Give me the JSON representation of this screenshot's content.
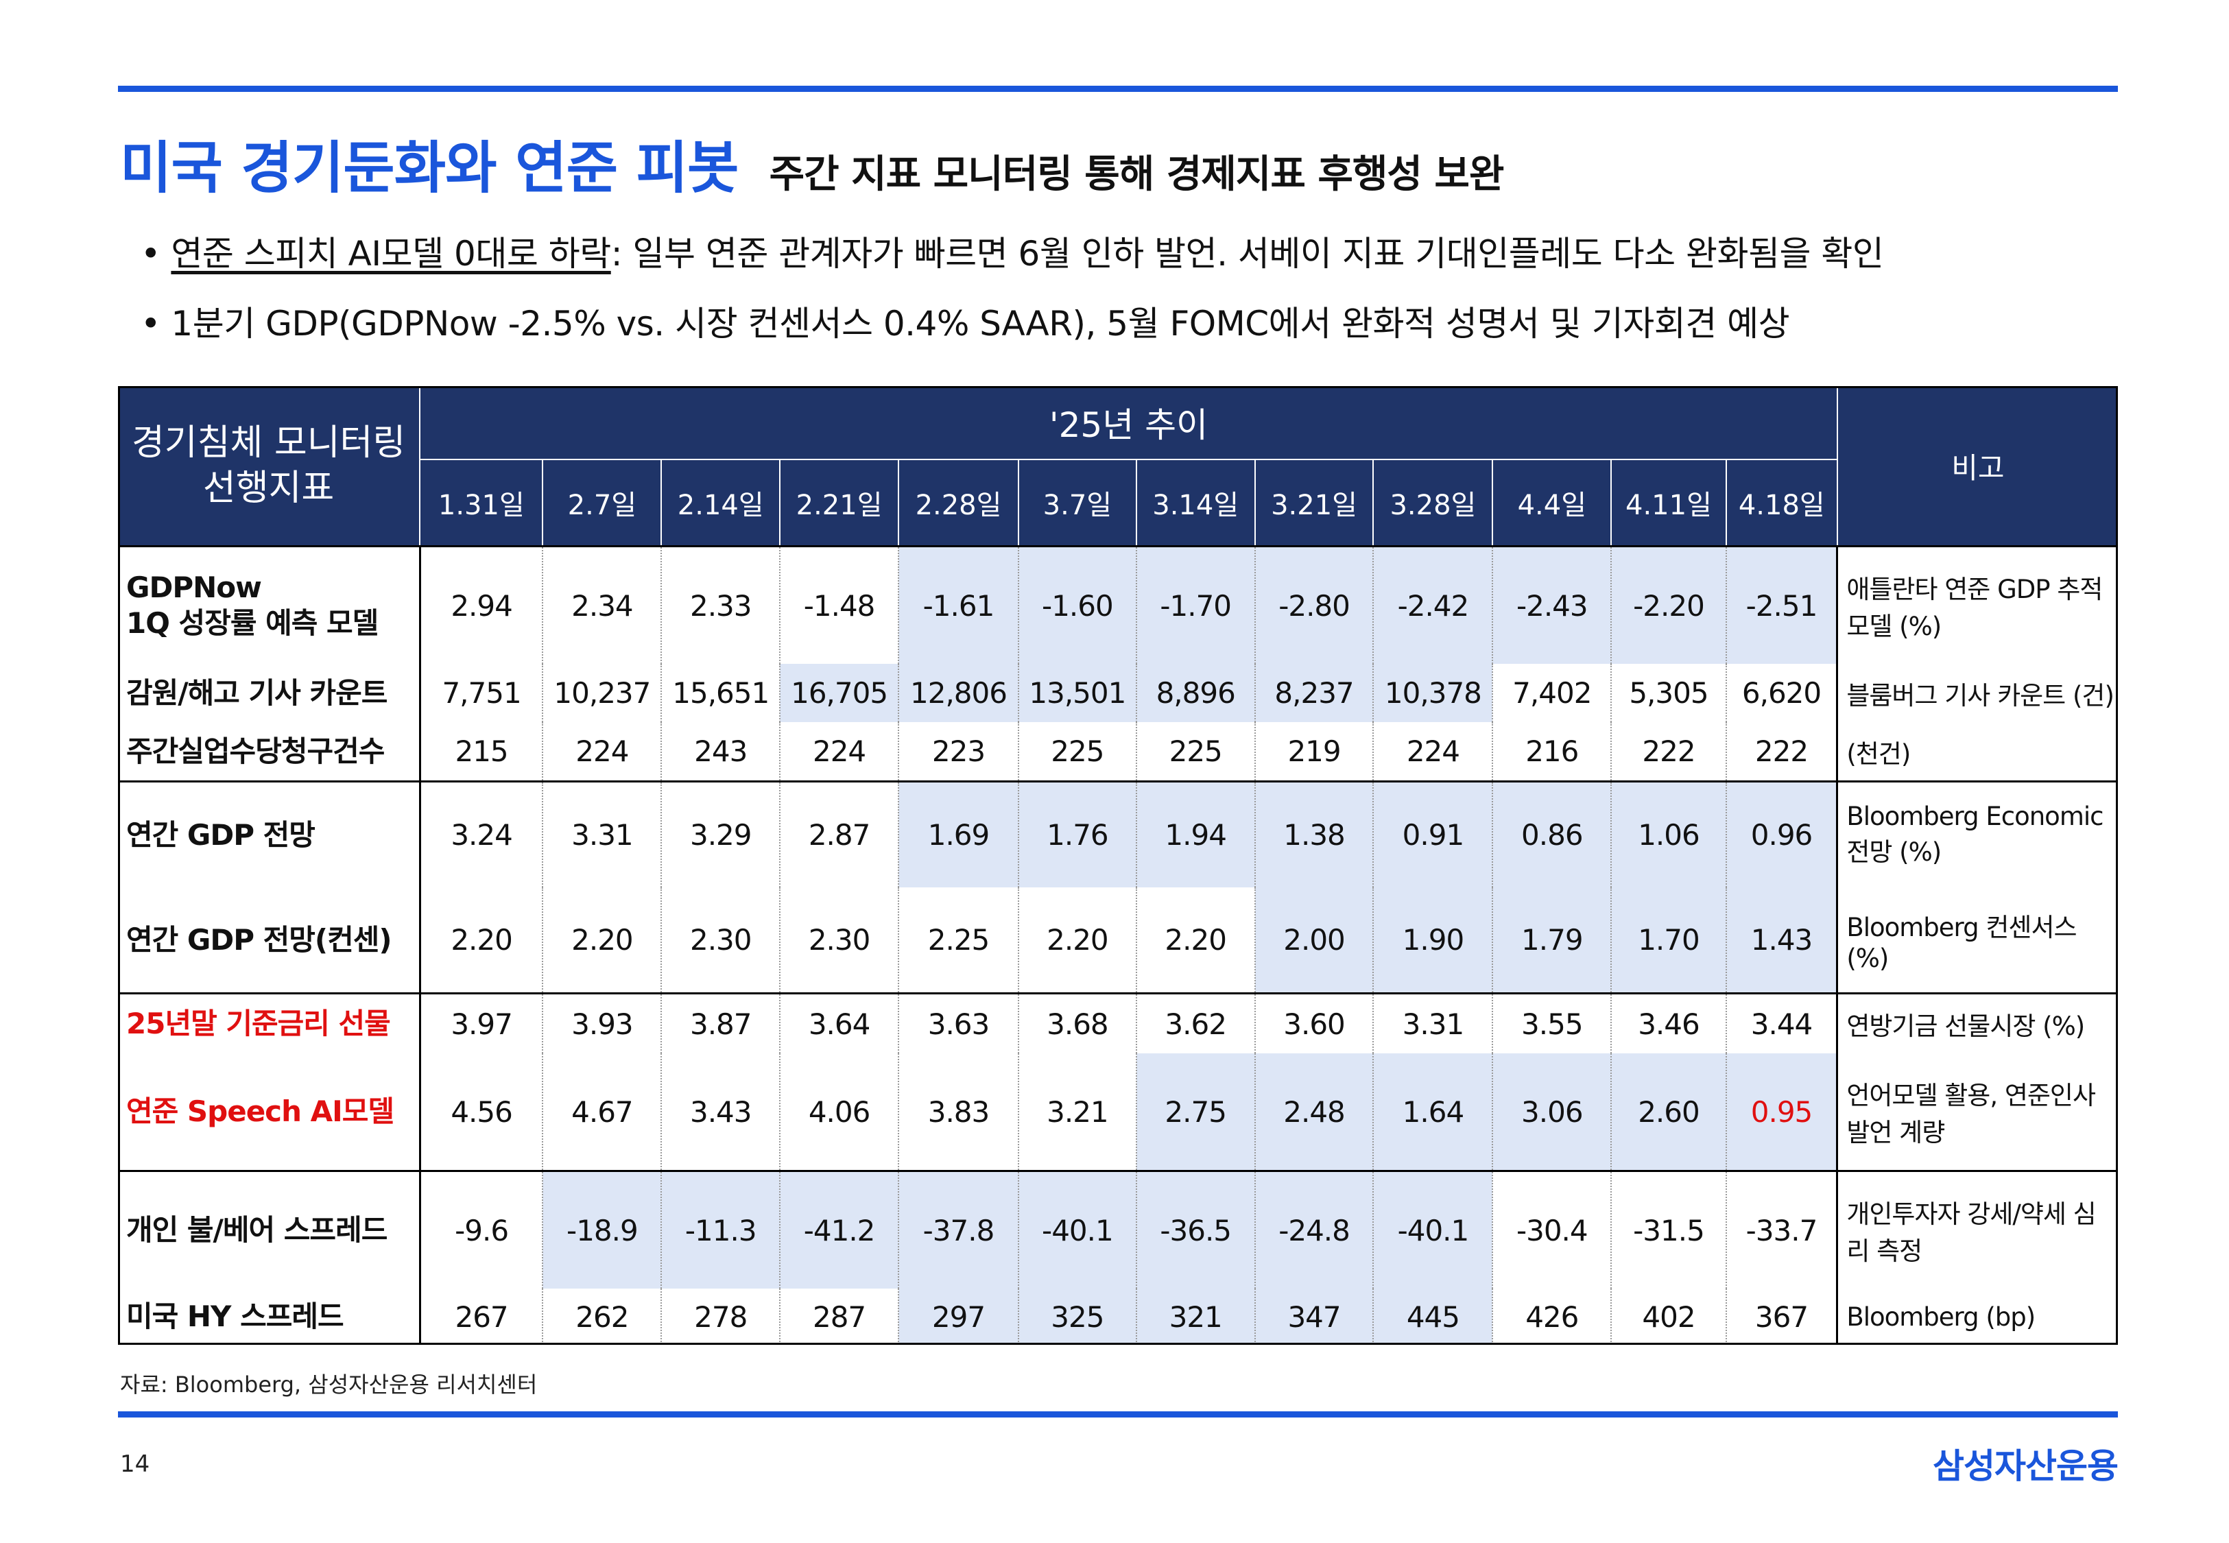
{
  "title": "미국 경기둔화와 연준 피봇",
  "subtitle": "주간 지표 모니터링 통해 경제지표 후행성 보완",
  "bullets": [
    {
      "underlined": "연준 스피치 AI모델 0대로 하락",
      "rest": ": 일부 연준 관계자가 빠르면 6월 인하 발언. 서베이 지표 기대인플레도 다소 완화됨을 확인"
    },
    {
      "underlined": "",
      "rest": "1분기 GDP(GDPNow -2.5% vs. 시장 컨센서스 0.4% SAAR), 5월 FOMC에서 완화적 성명서 및 기자회견 예상"
    }
  ],
  "table": {
    "indicator_header": "경기침체 모니터링 선행지표",
    "trend_header": "'25년 추이",
    "note_header": "비고",
    "dates": [
      "1.31일",
      "2.7일",
      "2.14일",
      "2.21일",
      "2.28일",
      "3.7일",
      "3.14일",
      "3.21일",
      "3.28일",
      "4.4일",
      "4.11일",
      "4.18일"
    ],
    "rows": [
      {
        "label": "GDPNow 1Q 성장률 예측 모델",
        "label_lines": [
          "GDPNow",
          "1Q 성장률 예측 모델"
        ],
        "values": [
          "2.94",
          "2.34",
          "2.33",
          "-1.48",
          "-1.61",
          "-1.60",
          "-1.70",
          "-2.80",
          "-2.42",
          "-2.43",
          "-2.20",
          "-2.51"
        ],
        "highlight": [
          4,
          5,
          6,
          7,
          8,
          9,
          10,
          11
        ],
        "note": "애틀란타 연준 GDP 추적 모델 (%)",
        "group_start": true,
        "red": false
      },
      {
        "label": "감원/해고 기사 카운트",
        "values": [
          "7,751",
          "10,237",
          "15,651",
          "16,705",
          "12,806",
          "13,501",
          "8,896",
          "8,237",
          "10,378",
          "7,402",
          "5,305",
          "6,620"
        ],
        "highlight": [
          3,
          4,
          5,
          6,
          7,
          8
        ],
        "note": "블룸버그 기사 카운트 (건)",
        "group_start": false,
        "red": false
      },
      {
        "label": "주간실업수당청구건수",
        "values": [
          "215",
          "224",
          "243",
          "224",
          "223",
          "225",
          "225",
          "219",
          "224",
          "216",
          "222",
          "222"
        ],
        "highlight": [],
        "note": "(천건)",
        "group_start": false,
        "red": false
      },
      {
        "label": "연간 GDP 전망",
        "values": [
          "3.24",
          "3.31",
          "3.29",
          "2.87",
          "1.69",
          "1.76",
          "1.94",
          "1.38",
          "0.91",
          "0.86",
          "1.06",
          "0.96"
        ],
        "highlight": [
          4,
          5,
          6,
          7,
          8,
          9,
          10,
          11
        ],
        "note": "Bloomberg Economic 전망 (%)",
        "group_start": true,
        "red": false
      },
      {
        "label": "연간 GDP 전망(컨센)",
        "values": [
          "2.20",
          "2.20",
          "2.30",
          "2.30",
          "2.25",
          "2.20",
          "2.20",
          "2.00",
          "1.90",
          "1.79",
          "1.70",
          "1.43"
        ],
        "highlight": [
          7,
          8,
          9,
          10,
          11
        ],
        "note": "Bloomberg 컨센서스 (%)",
        "group_start": false,
        "red": false
      },
      {
        "label": "25년말 기준금리 선물",
        "values": [
          "3.97",
          "3.93",
          "3.87",
          "3.64",
          "3.63",
          "3.68",
          "3.62",
          "3.60",
          "3.31",
          "3.55",
          "3.46",
          "3.44"
        ],
        "highlight": [],
        "note": "연방기금 선물시장 (%)",
        "group_start": true,
        "red": true
      },
      {
        "label": "연준 Speech AI모델",
        "values": [
          "4.56",
          "4.67",
          "3.43",
          "4.06",
          "3.83",
          "3.21",
          "2.75",
          "2.48",
          "1.64",
          "3.06",
          "2.60",
          "0.95"
        ],
        "highlight": [
          6,
          7,
          8,
          9,
          10,
          11
        ],
        "red_values": [
          11
        ],
        "note": "언어모델 활용, 연준인사 발언 계량",
        "group_start": false,
        "red": true
      },
      {
        "label": "개인 불/베어 스프레드",
        "values": [
          "-9.6",
          "-18.9",
          "-11.3",
          "-41.2",
          "-37.8",
          "-40.1",
          "-36.5",
          "-24.8",
          "-40.1",
          "-30.4",
          "-31.5",
          "-33.7"
        ],
        "highlight": [
          1,
          2,
          3,
          4,
          5,
          6,
          7,
          8
        ],
        "note": "개인투자자 강세/약세 심리 측정",
        "group_start": true,
        "red": false
      },
      {
        "label": "미국 HY 스프레드",
        "values": [
          "267",
          "262",
          "278",
          "287",
          "297",
          "325",
          "321",
          "347",
          "445",
          "426",
          "402",
          "367"
        ],
        "highlight": [
          4,
          5,
          6,
          7,
          8
        ],
        "note": "Bloomberg (bp)",
        "group_start": false,
        "red": false
      }
    ]
  },
  "colors": {
    "brand_blue": "#1a56db",
    "header_navy": "#1f3468",
    "highlight": "#dde6f6",
    "alert_red": "#e01010"
  },
  "source": "자료: Bloomberg, 삼성자산운용 리서치센터",
  "page_number": "14",
  "logo_text": "삼성자산운용"
}
